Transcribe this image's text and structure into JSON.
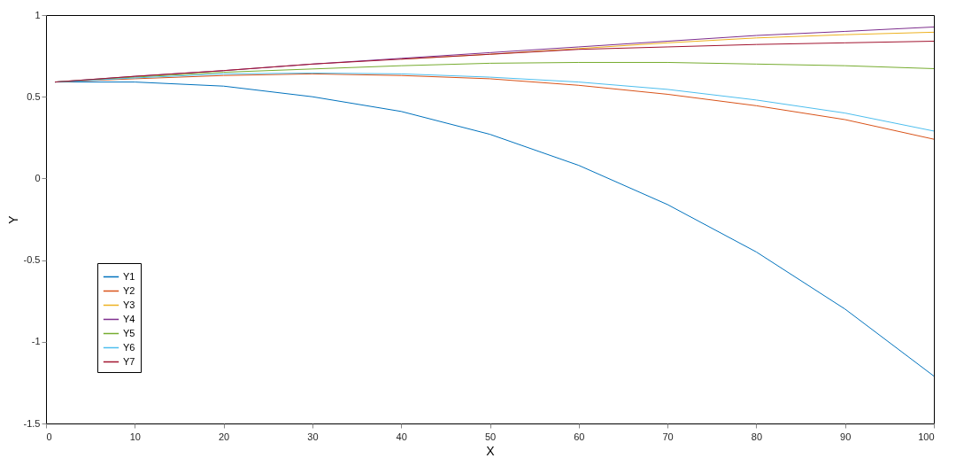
{
  "chart_data": {
    "type": "line",
    "xlabel": "X",
    "ylabel": "Y",
    "x": [
      1,
      10,
      20,
      30,
      40,
      50,
      60,
      70,
      80,
      90,
      100
    ],
    "xlim": [
      0,
      100
    ],
    "xticks": [
      0,
      10,
      20,
      30,
      40,
      50,
      60,
      70,
      80,
      90,
      100
    ],
    "ylim": [
      -1.5,
      1
    ],
    "yticks": [
      -1.5,
      -1,
      -0.5,
      0,
      0.5,
      1
    ],
    "grid": false,
    "legend": "bottom left",
    "marker": "none",
    "line_style": "solid",
    "series": [
      {
        "name": "Y1",
        "color": "#0072bd",
        "values": [
          0.59,
          0.59,
          0.565,
          0.5,
          0.41,
          0.27,
          0.08,
          -0.16,
          -0.45,
          -0.8,
          -1.21
        ]
      },
      {
        "name": "Y2",
        "color": "#d95319",
        "values": [
          0.59,
          0.61,
          0.63,
          0.64,
          0.63,
          0.61,
          0.57,
          0.515,
          0.445,
          0.36,
          0.24
        ]
      },
      {
        "name": "Y3",
        "color": "#edb120",
        "values": [
          null,
          null,
          null,
          null,
          0.73,
          0.76,
          0.795,
          0.83,
          0.86,
          0.88,
          0.895
        ]
      },
      {
        "name": "Y4",
        "color": "#7e2f8e",
        "values": [
          0.59,
          0.625,
          0.66,
          0.7,
          0.735,
          0.77,
          0.805,
          0.84,
          0.875,
          0.9,
          0.927
        ]
      },
      {
        "name": "Y5",
        "color": "#77ac30",
        "values": [
          0.59,
          0.62,
          0.65,
          0.67,
          0.69,
          0.705,
          0.71,
          0.71,
          0.7,
          0.69,
          0.672
        ]
      },
      {
        "name": "Y6",
        "color": "#4dbeee",
        "values": [
          0.59,
          0.615,
          0.64,
          0.645,
          0.64,
          0.62,
          0.59,
          0.545,
          0.48,
          0.4,
          0.29
        ]
      },
      {
        "name": "Y7",
        "color": "#a2142f",
        "values": [
          0.59,
          0.625,
          0.66,
          0.7,
          0.73,
          0.76,
          0.79,
          0.805,
          0.82,
          0.83,
          0.84
        ]
      }
    ]
  }
}
